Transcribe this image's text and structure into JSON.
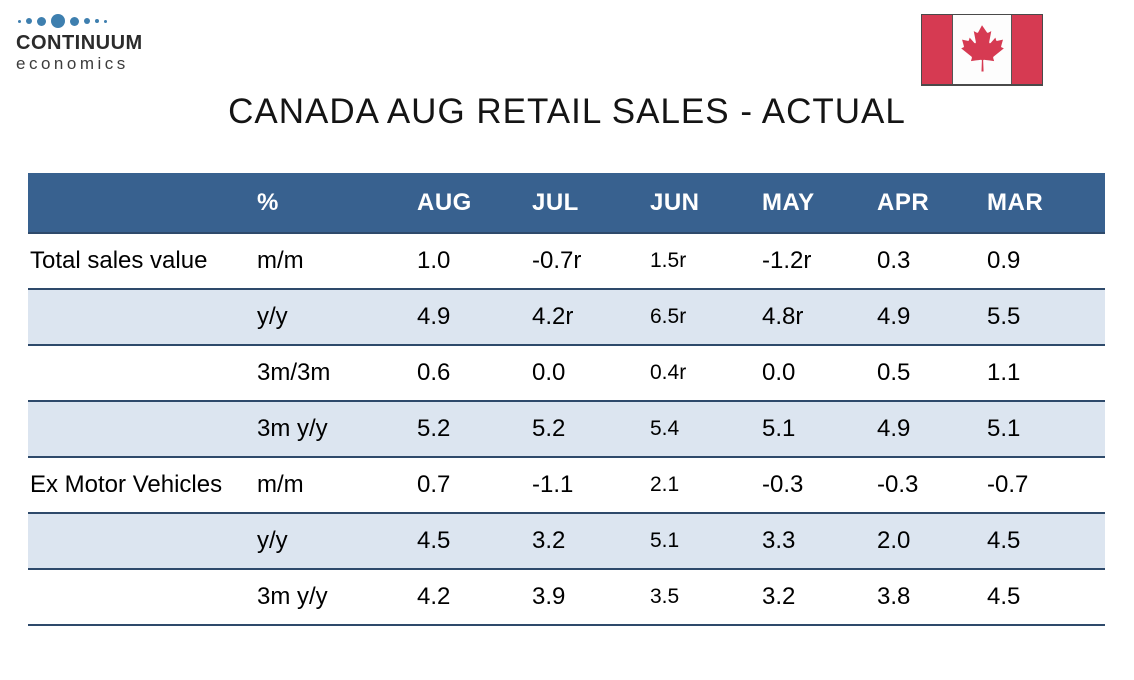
{
  "logo": {
    "name": "CONTINUUM",
    "subtitle": "economics"
  },
  "title": "CANADA AUG RETAIL SALES - ACTUAL",
  "colors": {
    "header_bg": "#38618F",
    "row_alt_bg": "#DCE5F0",
    "row_border": "#2E4A6B",
    "flag_red": "#D63A52",
    "logo_dot_blue": "#3E7FAF"
  },
  "table": {
    "columns": [
      "",
      "%",
      "AUG",
      "JUL",
      "JUN",
      "MAY",
      "APR",
      "MAR"
    ],
    "rows": [
      {
        "label": "Total sales value",
        "metric": "m/m",
        "values": [
          "1.0",
          "-0.7r",
          "1.5r",
          "-1.2r",
          "0.3",
          "0.9"
        ]
      },
      {
        "label": "",
        "metric": "y/y",
        "values": [
          "4.9",
          "4.2r",
          "6.5r",
          "4.8r",
          "4.9",
          "5.5"
        ]
      },
      {
        "label": "",
        "metric": "3m/3m",
        "values": [
          "0.6",
          "0.0",
          "0.4r",
          "0.0",
          "0.5",
          "1.1"
        ]
      },
      {
        "label": "",
        "metric": "3m y/y",
        "values": [
          "5.2",
          "5.2",
          "5.4",
          "5.1",
          "4.9",
          "5.1"
        ]
      },
      {
        "label": "Ex Motor Vehicles",
        "metric": "m/m",
        "values": [
          "0.7",
          "-1.1",
          "2.1",
          "-0.3",
          "-0.3",
          "-0.7"
        ]
      },
      {
        "label": "",
        "metric": "y/y",
        "values": [
          "4.5",
          "3.2",
          "5.1",
          "3.3",
          "2.0",
          "4.5"
        ]
      },
      {
        "label": "",
        "metric": "3m y/y",
        "values": [
          "4.2",
          "3.9",
          "3.5",
          "3.2",
          "3.8",
          "4.5"
        ]
      }
    ]
  },
  "chart_data": {
    "type": "table",
    "title": "CANADA AUG RETAIL SALES - ACTUAL",
    "columns": [
      "",
      "%",
      "AUG",
      "JUL",
      "JUN",
      "MAY",
      "APR",
      "MAR"
    ],
    "rows": [
      [
        "Total sales value",
        "m/m",
        "1.0",
        "-0.7r",
        "1.5r",
        "-1.2r",
        "0.3",
        "0.9"
      ],
      [
        "",
        "y/y",
        "4.9",
        "4.2r",
        "6.5r",
        "4.8r",
        "4.9",
        "5.5"
      ],
      [
        "",
        "3m/3m",
        "0.6",
        "0.0",
        "0.4r",
        "0.0",
        "0.5",
        "1.1"
      ],
      [
        "",
        "3m y/y",
        "5.2",
        "5.2",
        "5.4",
        "5.1",
        "4.9",
        "5.1"
      ],
      [
        "Ex Motor Vehicles",
        "m/m",
        "0.7",
        "-1.1",
        "2.1",
        "-0.3",
        "-0.3",
        "-0.7"
      ],
      [
        "",
        "y/y",
        "4.5",
        "3.2",
        "5.1",
        "3.3",
        "2.0",
        "4.5"
      ],
      [
        "",
        "3m y/y",
        "4.2",
        "3.9",
        "3.5",
        "3.2",
        "3.8",
        "4.5"
      ]
    ]
  }
}
